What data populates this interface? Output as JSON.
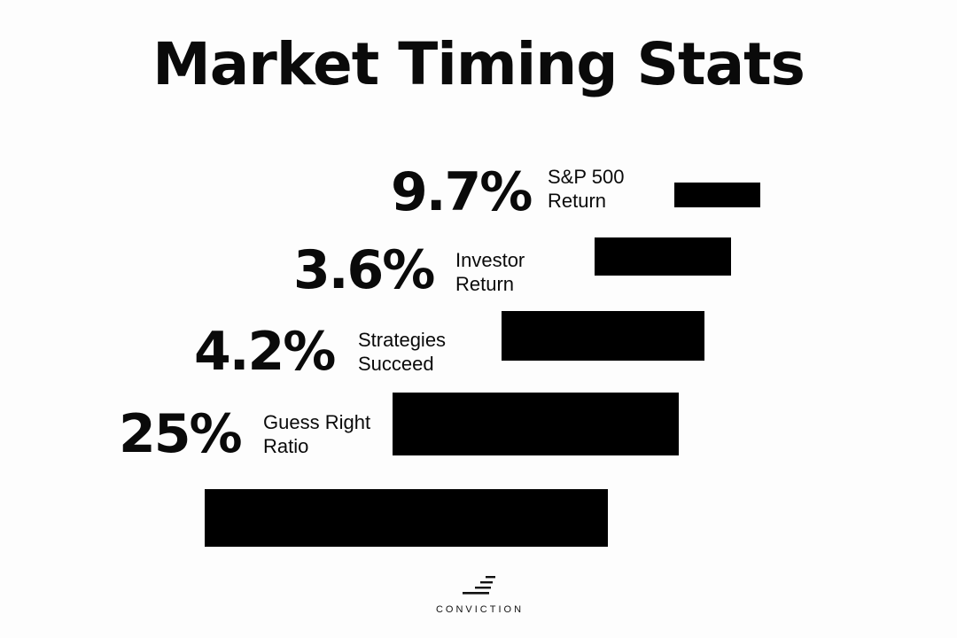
{
  "title": "Market Timing Stats",
  "stats": [
    {
      "value": "9.7%",
      "label_line1": "S&P 500",
      "label_line2": "Return"
    },
    {
      "value": "3.6%",
      "label_line1": "Investor",
      "label_line2": "Return"
    },
    {
      "value": "4.2%",
      "label_line1": "Strategies",
      "label_line2": "Succeed"
    },
    {
      "value": "25%",
      "label_line1": "Guess Right",
      "label_line2": "Ratio"
    }
  ],
  "logo": {
    "text": "CONVICTION",
    "icon": "staircase-logo-icon"
  },
  "colors": {
    "background": "#fdfdfd",
    "bar": "#000000",
    "text": "#0a0a0a"
  }
}
